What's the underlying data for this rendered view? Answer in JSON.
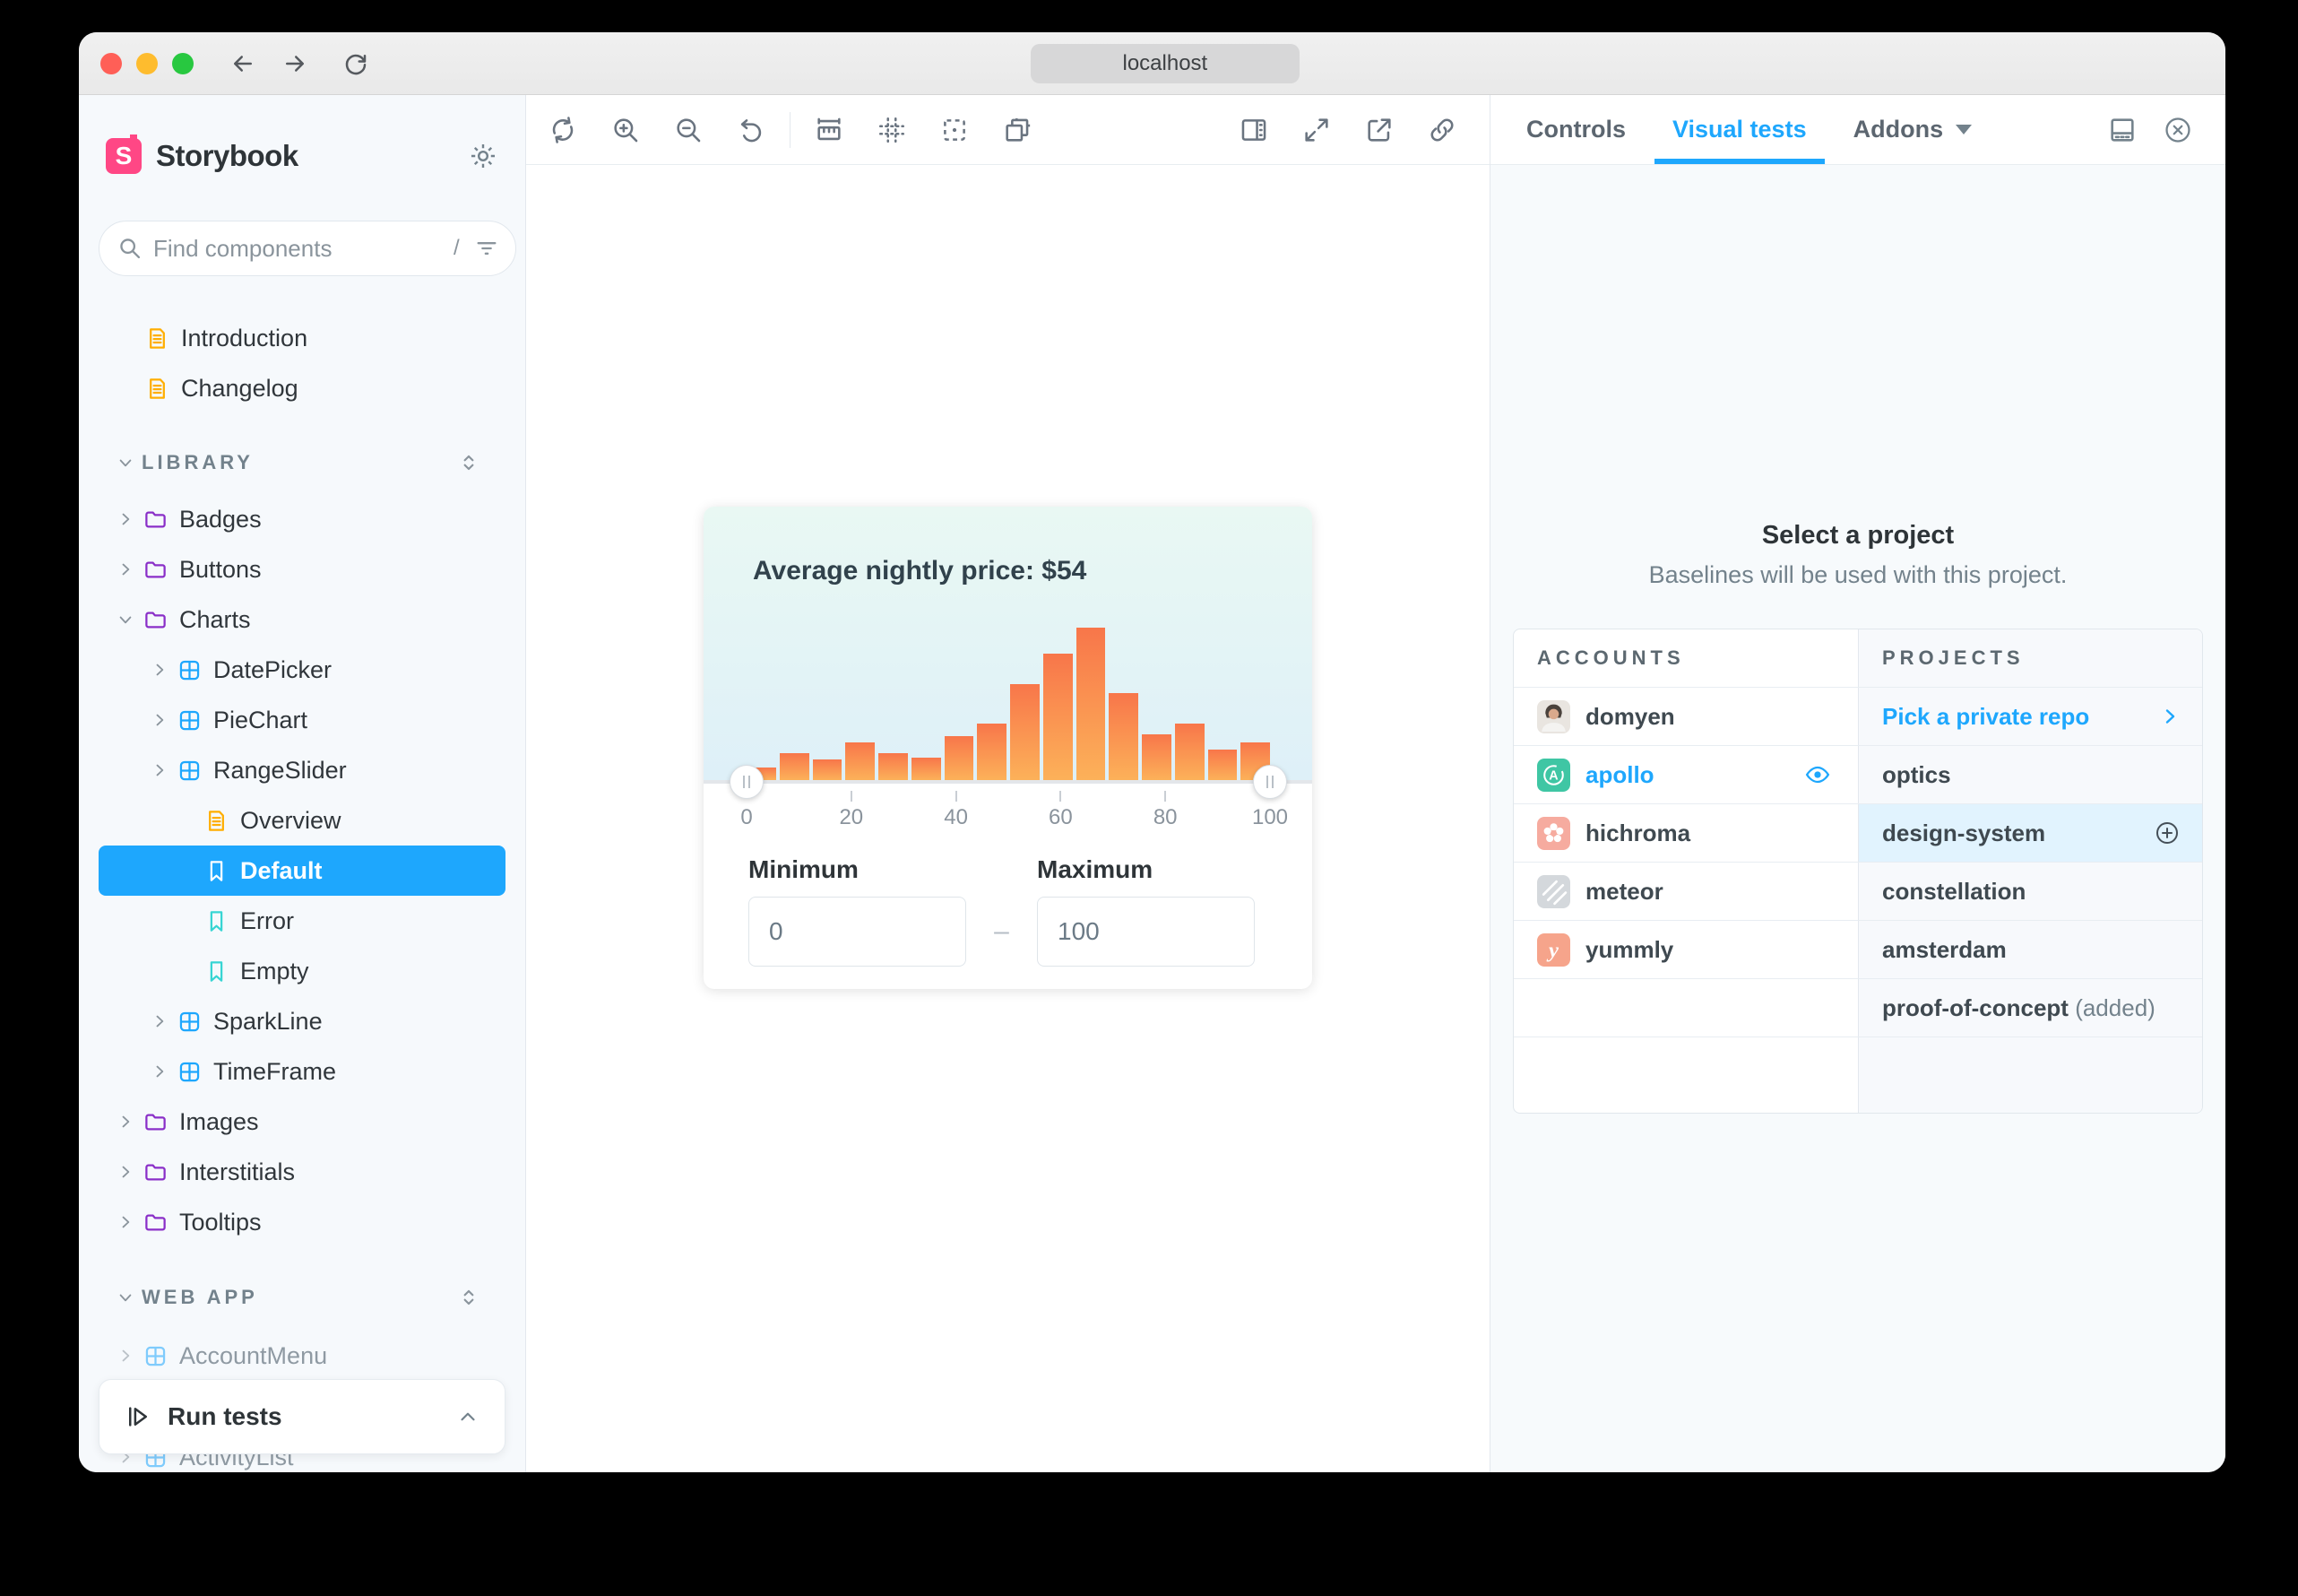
{
  "window": {
    "url": "localhost"
  },
  "sidebar": {
    "brand": "Storybook",
    "brand_initial": "S",
    "search": {
      "placeholder": "Find components",
      "shortcut": "/"
    },
    "run_tests_label": "Run tests",
    "tree": [
      {
        "label": "Introduction",
        "type": "doc",
        "depth": 0
      },
      {
        "label": "Changelog",
        "type": "doc",
        "depth": 0
      },
      {
        "label": "LIBRARY",
        "type": "section",
        "gap": 27
      },
      {
        "label": "Badges",
        "type": "folder",
        "chevron": "right",
        "gap": 7
      },
      {
        "label": "Buttons",
        "type": "folder",
        "chevron": "right"
      },
      {
        "label": "Charts",
        "type": "folder",
        "chevron": "down"
      },
      {
        "label": "DatePicker",
        "type": "component",
        "chevron": "right",
        "depth": 1
      },
      {
        "label": "PieChart",
        "type": "component",
        "chevron": "right",
        "depth": 1
      },
      {
        "label": "RangeSlider",
        "type": "component",
        "chevron": "right",
        "depth": 1
      },
      {
        "label": "Overview",
        "type": "doc",
        "depth": 2
      },
      {
        "label": "Default",
        "type": "story",
        "depth": 2,
        "selected": true
      },
      {
        "label": "Error",
        "type": "story",
        "depth": 2
      },
      {
        "label": "Empty",
        "type": "story",
        "depth": 2
      },
      {
        "label": "SparkLine",
        "type": "component",
        "chevron": "right",
        "depth": 1
      },
      {
        "label": "TimeFrame",
        "type": "component",
        "chevron": "right",
        "depth": 1
      },
      {
        "label": "Images",
        "type": "folder",
        "chevron": "right"
      },
      {
        "label": "Interstitials",
        "type": "folder",
        "chevron": "right"
      },
      {
        "label": "Tooltips",
        "type": "folder",
        "chevron": "right"
      },
      {
        "label": "WEB APP",
        "type": "section",
        "gap": 28
      },
      {
        "label": "AccountMenu",
        "type": "component",
        "chevron": "right",
        "muted": true,
        "gap": 9
      },
      {
        "label": "ActivityList",
        "type": "component",
        "chevron": "right",
        "muted": true,
        "gap": 57
      }
    ]
  },
  "panel": {
    "tabs": [
      {
        "label": "Controls"
      },
      {
        "label": "Visual tests",
        "active": true
      },
      {
        "label": "Addons",
        "caret": true
      }
    ],
    "heading": "Select a project",
    "subheading": "Baselines will be used with this project.",
    "table": {
      "headers": [
        "ACCOUNTS",
        "PROJECTS"
      ],
      "rows": [
        {
          "account": {
            "name": "domyen",
            "icon": "avatar-domyen"
          },
          "project": {
            "label": "Pick a private repo",
            "link": true,
            "chevron": true
          }
        },
        {
          "account": {
            "name": "apollo",
            "icon": "avatar-apollo",
            "selected": true,
            "eye": true
          },
          "project": {
            "label": "optics"
          }
        },
        {
          "account": {
            "name": "hichroma",
            "icon": "avatar-hichroma"
          },
          "project": {
            "label": "design-system",
            "highlight": true,
            "add": true
          }
        },
        {
          "account": {
            "name": "meteor",
            "icon": "avatar-meteor"
          },
          "project": {
            "label": "constellation"
          }
        },
        {
          "account": {
            "name": "yummly",
            "icon": "avatar-yummly"
          },
          "project": {
            "label": "amsterdam"
          }
        },
        {
          "account": null,
          "project": {
            "label": "proof-of-concept",
            "suffix": " (added)"
          }
        },
        {
          "account": null,
          "project": null,
          "tall": true
        }
      ]
    }
  },
  "card": {
    "title": "Average nightly price: $54",
    "min_label": "Minimum",
    "max_label": "Maximum",
    "min_value": "0",
    "max_value": "100",
    "range_separator": "–"
  },
  "chart_data": {
    "type": "bar",
    "title": "Average nightly price: $54",
    "x_range": [
      0,
      100
    ],
    "x_ticks": [
      0,
      20,
      40,
      60,
      80,
      100
    ],
    "bar_heights_pct": [
      8,
      17.5,
      13.5,
      25,
      17.5,
      15,
      29,
      37,
      63,
      83,
      100,
      57,
      30,
      37,
      20,
      25
    ],
    "bar_color_top": "#F8764A",
    "bar_color_bottom": "#FCB159",
    "slider": {
      "min": 0,
      "max": 100,
      "handle_positions": [
        0,
        100
      ]
    },
    "grid": false,
    "legend": false
  },
  "colors": {
    "accent": "#1EA7FD",
    "brand": "#FF4785",
    "folder_icon": "#8A2FC8",
    "doc_icon": "#FFAE00",
    "story_icon": "#37D5D3",
    "highlight_row": "#E1F3FE"
  }
}
